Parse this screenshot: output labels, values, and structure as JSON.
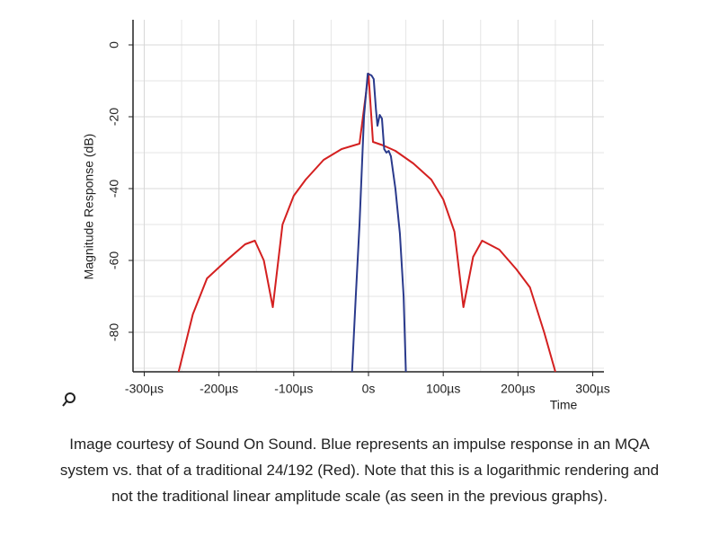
{
  "chart_data": {
    "type": "line",
    "ylabel": "Magnitude Response (dB)",
    "xlabel": "Time",
    "xlim": [
      -315,
      315
    ],
    "ylim": [
      -91,
      7
    ],
    "xticks": [
      {
        "value": -300,
        "label": "-300µs"
      },
      {
        "value": -200,
        "label": "-200µs"
      },
      {
        "value": -100,
        "label": "-100µs"
      },
      {
        "value": 0,
        "label": "0s"
      },
      {
        "value": 100,
        "label": "100µs"
      },
      {
        "value": 200,
        "label": "200µs"
      },
      {
        "value": 300,
        "label": "300µs"
      }
    ],
    "xminor": [
      -250,
      -150,
      -50,
      50,
      150,
      250
    ],
    "yticks": [
      0,
      -20,
      -40,
      -60,
      -80
    ],
    "yminor": [
      -10,
      -30,
      -50,
      -70,
      -90
    ],
    "grid": true,
    "series": [
      {
        "color": "#d42020",
        "x": [
          -254,
          -235,
          -216,
          -190,
          -165,
          -152,
          -140,
          -128,
          -115,
          -100,
          -84,
          -60,
          -36,
          -12,
          0,
          6,
          20,
          36,
          60,
          84,
          100,
          115,
          127,
          140,
          152,
          175,
          198,
          216,
          235,
          250
        ],
        "values": [
          -91,
          -75,
          -65,
          -60,
          -55.5,
          -54.5,
          -60,
          -73,
          -50,
          -42,
          -37.5,
          -32,
          -29,
          -27.5,
          -8,
          -27,
          -28,
          -29.5,
          -33,
          -37.5,
          -43,
          -52,
          -73,
          -59,
          -54.5,
          -57,
          -62.5,
          -67.5,
          -80,
          -91
        ]
      },
      {
        "color": "#2a3a8c",
        "x": [
          -22,
          -17,
          -12,
          -6,
          -1,
          4,
          7,
          10,
          12,
          15,
          18,
          21,
          24,
          27,
          30,
          36,
          42,
          47,
          50
        ],
        "values": [
          -91,
          -70,
          -50,
          -20,
          -8,
          -8.5,
          -9.5,
          -18,
          -22.5,
          -19.5,
          -20.5,
          -29,
          -30,
          -29.5,
          -31,
          -40,
          -52.5,
          -70,
          -91
        ]
      }
    ]
  },
  "caption": "Image courtesy of Sound On Sound. Blue represents an impulse response in an MQA system vs. that of a traditional 24/192 (Red). Note that this is a logarithmic rendering and not the traditional linear amplitude scale (as seen in the previous graphs)."
}
